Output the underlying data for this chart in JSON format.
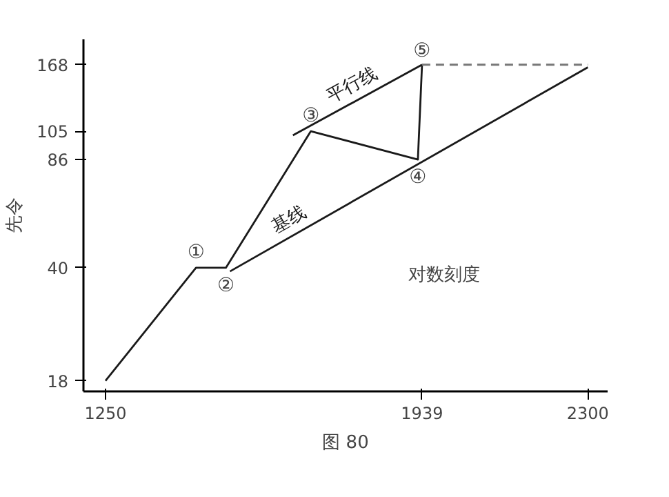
{
  "chart_data": {
    "type": "line",
    "ylabel": "先令",
    "log": "y",
    "grid": false,
    "marker": "none",
    "xlim": [
      1202,
      2343
    ],
    "ylim": [
      16.7,
      201
    ],
    "xticks": [
      1250,
      1939,
      2300
    ],
    "yticks": [
      18,
      40,
      86,
      105,
      168
    ],
    "series": [
      {
        "color": "#1a1a1a",
        "x": [
          1250,
          1447,
          1512,
          1697,
          1930,
          1939
        ],
        "values": [
          18,
          40,
          40,
          105,
          86,
          168
        ]
      },
      {
        "name": "基线",
        "color": "#1a1a1a",
        "x": [
          1521,
          2300
        ],
        "values": [
          39,
          165
        ]
      },
      {
        "name": "平行线",
        "color": "#1a1a1a",
        "x": [
          1658,
          1939
        ],
        "values": [
          102,
          168
        ]
      },
      {
        "color": "#777777",
        "line_style": "dashed",
        "x": [
          1939,
          2300
        ],
        "values": [
          168,
          168
        ]
      }
    ],
    "annotations": [
      {
        "text": "①",
        "x": 1447,
        "y": 40
      },
      {
        "text": "②",
        "x": 1512,
        "y": 40
      },
      {
        "text": "③",
        "x": 1697,
        "y": 105
      },
      {
        "text": "④",
        "x": 1930,
        "y": 86
      },
      {
        "text": "⑤",
        "x": 1939,
        "y": 168
      },
      "对数刻度",
      "图 80"
    ]
  }
}
